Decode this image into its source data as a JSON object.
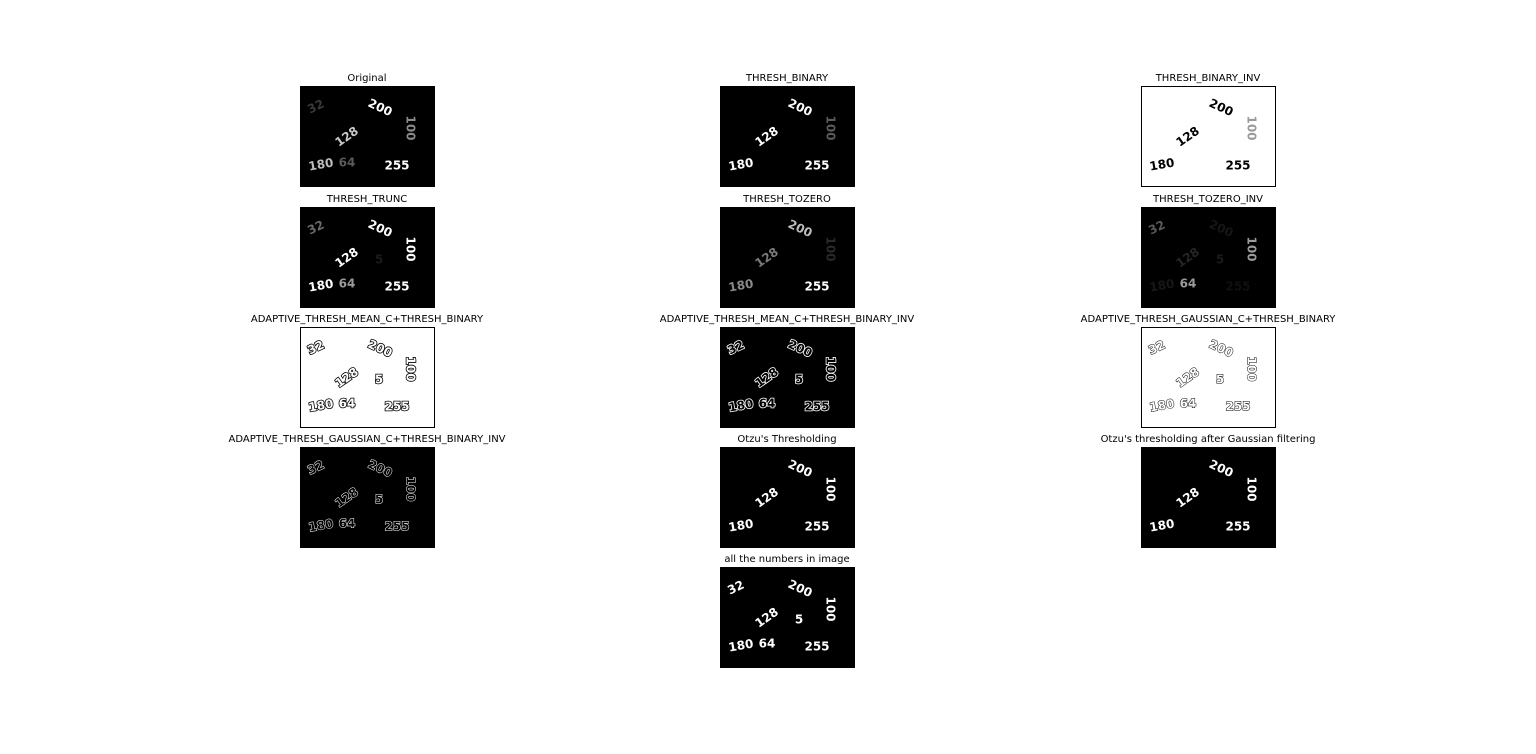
{
  "colors": {
    "black": "#000000",
    "white": "#ffffff"
  },
  "panels": [
    {
      "title": "Original"
    },
    {
      "title": "THRESH_BINARY"
    },
    {
      "title": "THRESH_BINARY_INV"
    },
    {
      "title": "THRESH_TRUNC"
    },
    {
      "title": "THRESH_TOZERO"
    },
    {
      "title": "THRESH_TOZERO_INV"
    },
    {
      "title": "ADAPTIVE_THRESH_MEAN_C+THRESH_BINARY"
    },
    {
      "title": "ADAPTIVE_THRESH_MEAN_C+THRESH_BINARY_INV"
    },
    {
      "title": "ADAPTIVE_THRESH_GAUSSIAN_C+THRESH_BINARY"
    },
    {
      "title": "ADAPTIVE_THRESH_GAUSSIAN_C+THRESH_BINARY_INV"
    },
    {
      "title": "Otzu's Thresholding"
    },
    {
      "title": "Otzu's thresholding after Gaussian filtering"
    },
    {
      "title": "all the numbers in image"
    }
  ],
  "numbers": [
    "32",
    "200",
    "100",
    "128",
    "5",
    "180",
    "64",
    "255"
  ]
}
